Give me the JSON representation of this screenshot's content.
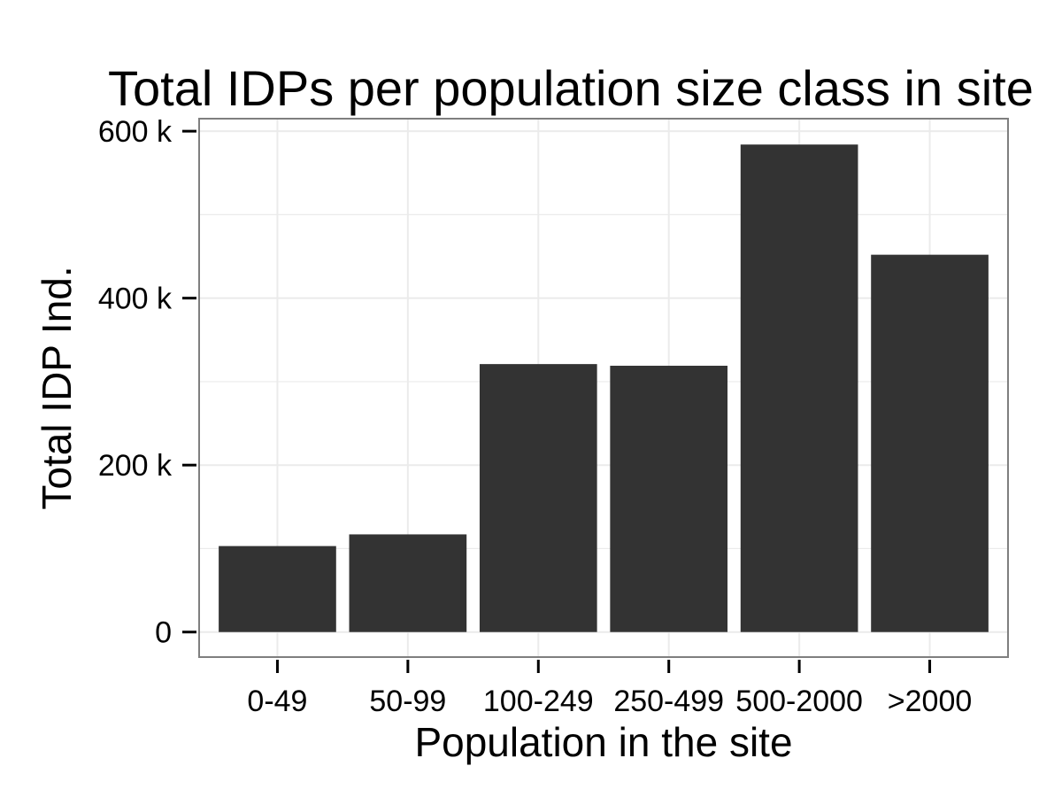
{
  "chart_data": {
    "type": "bar",
    "title": "Total IDPs per population size class in site",
    "xlabel": "Population in the site",
    "ylabel": "Total IDP Ind.",
    "categories": [
      "0-49",
      "50-99",
      "100-249",
      "250-499",
      "500-2000",
      ">2000"
    ],
    "values": [
      103000,
      117000,
      321000,
      319000,
      584000,
      452000
    ],
    "ylim": [
      -30000,
      615000
    ],
    "yticks": [
      0,
      200000,
      400000,
      600000
    ],
    "ytick_labels": [
      "0",
      "200 k",
      "400 k",
      "600 k"
    ],
    "grid": true,
    "legend": "none",
    "colors": {
      "bar": "#333333",
      "grid": "#ebebeb",
      "panel_border": "#7f7f7f"
    }
  }
}
